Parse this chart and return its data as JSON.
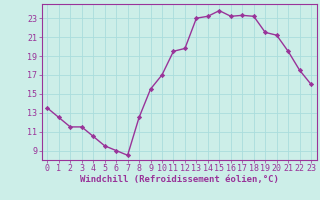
{
  "x": [
    0,
    1,
    2,
    3,
    4,
    5,
    6,
    7,
    8,
    9,
    10,
    11,
    12,
    13,
    14,
    15,
    16,
    17,
    18,
    19,
    20,
    21,
    22,
    23
  ],
  "y": [
    13.5,
    12.5,
    11.5,
    11.5,
    10.5,
    9.5,
    9.0,
    8.5,
    12.5,
    15.5,
    17.0,
    19.5,
    19.8,
    23.0,
    23.2,
    23.8,
    23.2,
    23.3,
    23.2,
    21.5,
    21.2,
    19.5,
    17.5,
    16.0
  ],
  "line_color": "#993399",
  "marker": "D",
  "markersize": 2.2,
  "linewidth": 1.0,
  "bg_color": "#cceee8",
  "grid_color": "#aadddd",
  "xlabel": "Windchill (Refroidissement éolien,°C)",
  "xlabel_fontsize": 6.5,
  "tick_fontsize": 6.0,
  "ylim": [
    8.0,
    24.5
  ],
  "yticks": [
    9,
    11,
    13,
    15,
    17,
    19,
    21,
    23
  ],
  "xlim": [
    -0.5,
    23.5
  ],
  "xticks": [
    0,
    1,
    2,
    3,
    4,
    5,
    6,
    7,
    8,
    9,
    10,
    11,
    12,
    13,
    14,
    15,
    16,
    17,
    18,
    19,
    20,
    21,
    22,
    23
  ]
}
